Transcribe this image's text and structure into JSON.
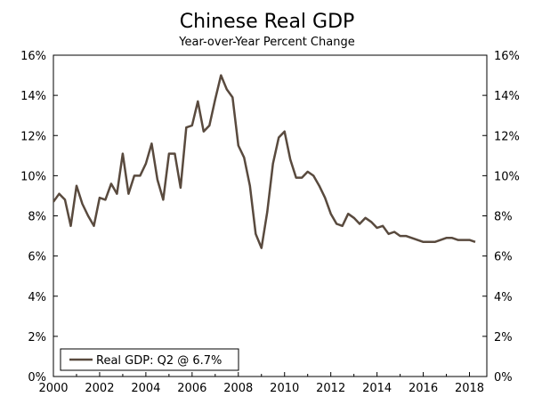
{
  "chart_data": {
    "type": "line",
    "title": "Chinese Real GDP",
    "subtitle": "Year-over-Year Percent Change",
    "xlabel": "",
    "ylabel": "",
    "xlim": [
      2000,
      2018.75
    ],
    "ylim": [
      0,
      16
    ],
    "x_ticks": [
      2000,
      2002,
      2004,
      2006,
      2008,
      2010,
      2012,
      2014,
      2016,
      2018
    ],
    "y_ticks": [
      "0%",
      "2%",
      "4%",
      "6%",
      "8%",
      "10%",
      "12%",
      "14%",
      "16%"
    ],
    "y_tick_values": [
      0,
      2,
      4,
      6,
      8,
      10,
      12,
      14,
      16
    ],
    "grid": false,
    "legend_position": "bottom-left",
    "line_color": "#594a3e",
    "series": [
      {
        "name": "Real GDP: Q2 @ 6.7%",
        "x": [
          2000.0,
          2000.25,
          2000.5,
          2000.75,
          2001.0,
          2001.25,
          2001.5,
          2001.75,
          2002.0,
          2002.25,
          2002.5,
          2002.75,
          2003.0,
          2003.25,
          2003.5,
          2003.75,
          2004.0,
          2004.25,
          2004.5,
          2004.75,
          2005.0,
          2005.25,
          2005.5,
          2005.75,
          2006.0,
          2006.25,
          2006.5,
          2006.75,
          2007.0,
          2007.25,
          2007.5,
          2007.75,
          2008.0,
          2008.25,
          2008.5,
          2008.75,
          2009.0,
          2009.25,
          2009.5,
          2009.75,
          2010.0,
          2010.25,
          2010.5,
          2010.75,
          2011.0,
          2011.25,
          2011.5,
          2011.75,
          2012.0,
          2012.25,
          2012.5,
          2012.75,
          2013.0,
          2013.25,
          2013.5,
          2013.75,
          2014.0,
          2014.25,
          2014.5,
          2014.75,
          2015.0,
          2015.25,
          2015.5,
          2015.75,
          2016.0,
          2016.25,
          2016.5,
          2016.75,
          2017.0,
          2017.25,
          2017.5,
          2017.75,
          2018.0,
          2018.25
        ],
        "values": [
          8.7,
          9.1,
          8.8,
          7.5,
          9.5,
          8.6,
          8.0,
          7.5,
          8.9,
          8.8,
          9.6,
          9.1,
          11.1,
          9.1,
          10.0,
          10.0,
          10.6,
          11.6,
          9.8,
          8.8,
          11.1,
          11.1,
          9.4,
          12.4,
          12.5,
          13.7,
          12.2,
          12.5,
          13.8,
          15.0,
          14.3,
          13.9,
          11.5,
          10.9,
          9.5,
          7.1,
          6.4,
          8.2,
          10.6,
          11.9,
          12.2,
          10.8,
          9.9,
          9.9,
          10.2,
          10.0,
          9.5,
          8.9,
          8.1,
          7.6,
          7.5,
          8.1,
          7.9,
          7.6,
          7.9,
          7.7,
          7.4,
          7.5,
          7.1,
          7.2,
          7.0,
          7.0,
          6.9,
          6.8,
          6.7,
          6.7,
          6.7,
          6.8,
          6.9,
          6.9,
          6.8,
          6.8,
          6.8,
          6.7
        ]
      }
    ]
  }
}
